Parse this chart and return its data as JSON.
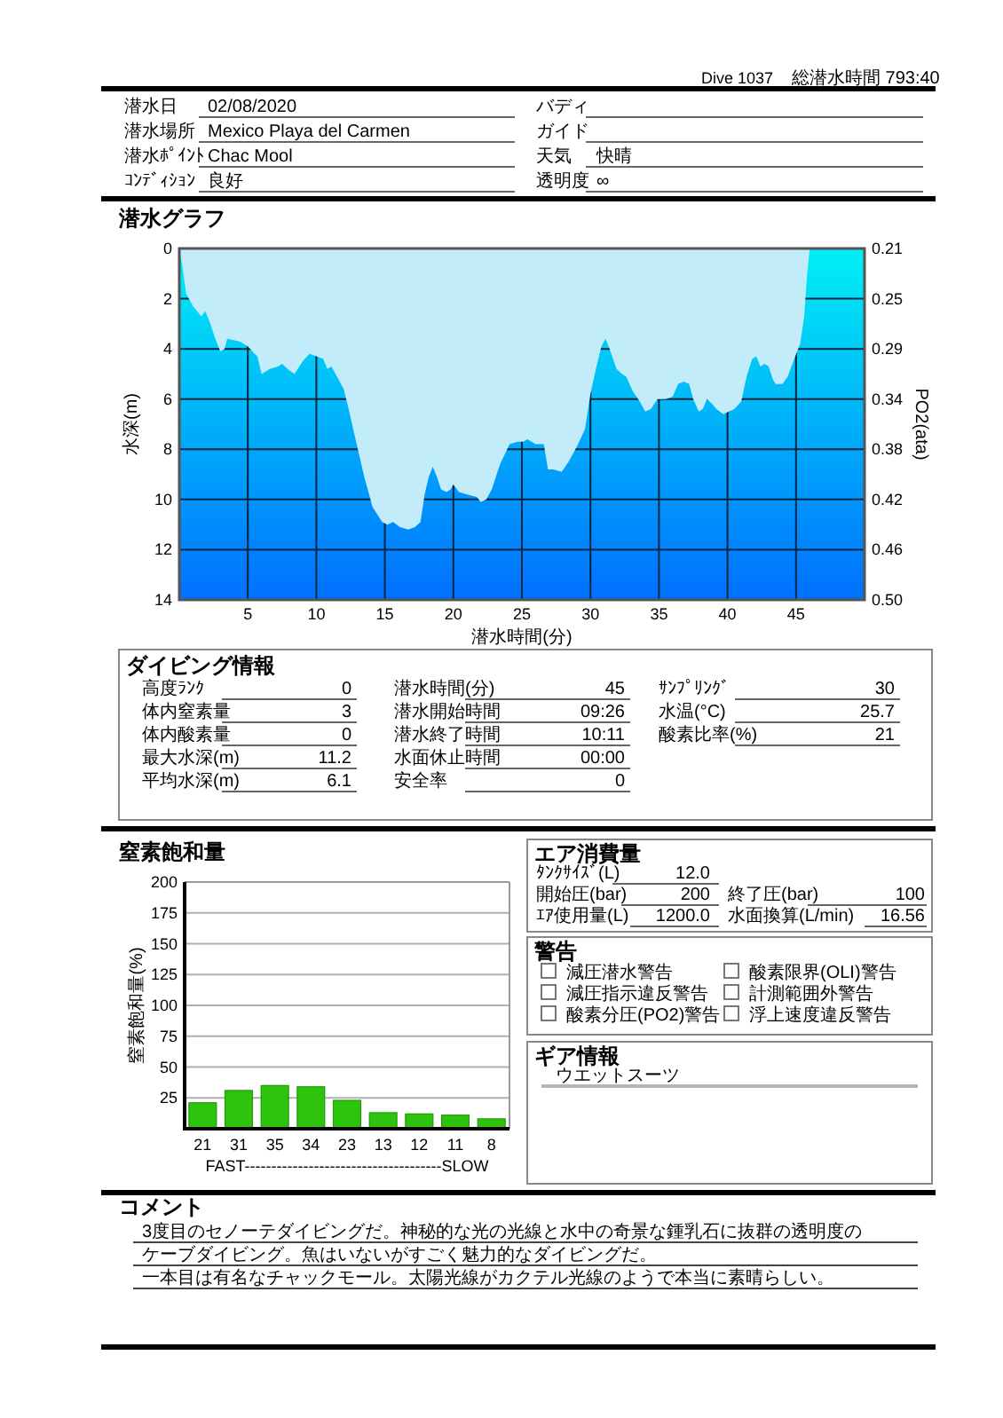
{
  "chart_data": [
    {
      "type": "other",
      "annotations": [
        "Dive 1037",
        "総潜水時間 793:40",
        "潜水日",
        "02/08/2020",
        "潜水場所",
        "Mexico Playa del Carmen",
        "潜水ﾎﾟｲﾝﾄ",
        "Chac Mool",
        "ｺﾝﾃﾞｨｼｮﾝ",
        "良好",
        "バディ",
        "ガイド",
        "天気",
        "快晴",
        "透明度",
        "∞"
      ]
    },
    {
      "type": "area",
      "title": "潜水グラフ",
      "xlabel": "潜水時間(分)",
      "ylabel": "水深(m)",
      "y2label": "PO2(ata)",
      "x": [
        0,
        0.2,
        0.5,
        1.0,
        1.6,
        1.9,
        2.2,
        2.7,
        3.0,
        3.3,
        3.5,
        4.4,
        5.0,
        5.5,
        5.7,
        6.0,
        6.6,
        7.2,
        7.5,
        7.9,
        8.4,
        9.0,
        9.5,
        10.0,
        10.5,
        10.8,
        11.1,
        11.5,
        12.0,
        12.4,
        12.9,
        13.5,
        14.1,
        14.8,
        15.2,
        15.6,
        16.1,
        16.7,
        17.2,
        17.6,
        17.9,
        18.2,
        18.5,
        18.8,
        19.1,
        19.5,
        19.8,
        20.0,
        20.4,
        21.0,
        21.7,
        22.0,
        22.4,
        22.8,
        23.4,
        24.1,
        24.7,
        25.1,
        25.4,
        26.0,
        26.6,
        26.9,
        27.3,
        27.9,
        28.4,
        29.0,
        29.6,
        30.0,
        30.4,
        30.8,
        31.1,
        31.4,
        31.9,
        32.3,
        32.6,
        33.1,
        33.6,
        34.0,
        34.4,
        34.9,
        35.5,
        36.0,
        36.4,
        36.8,
        37.2,
        37.5,
        37.9,
        38.2,
        38.5,
        38.9,
        39.2,
        39.7,
        40.1,
        40.5,
        41.0,
        41.4,
        41.8,
        42.1,
        42.4,
        42.7,
        43.0,
        43.3,
        43.5,
        44.0,
        44.4,
        44.8,
        45.3,
        45.6,
        45.8,
        46.0
      ],
      "values": [
        0,
        0.6,
        1.8,
        2.3,
        2.7,
        2.5,
        2.9,
        3.7,
        4.1,
        4.0,
        3.6,
        3.7,
        3.9,
        4.2,
        4.3,
        5.0,
        4.8,
        4.7,
        4.6,
        4.8,
        5.0,
        4.5,
        4.2,
        4.3,
        4.4,
        4.8,
        4.7,
        5.1,
        5.6,
        6.5,
        7.7,
        9.1,
        10.3,
        10.9,
        11.0,
        10.9,
        11.1,
        11.2,
        11.1,
        10.9,
        9.8,
        9.1,
        8.7,
        9.1,
        9.6,
        9.7,
        9.6,
        9.4,
        9.7,
        9.8,
        9.9,
        10.1,
        10.0,
        9.6,
        8.6,
        7.8,
        7.7,
        7.7,
        7.6,
        7.8,
        7.8,
        8.8,
        8.8,
        8.9,
        8.5,
        7.9,
        7.2,
        5.8,
        4.8,
        3.9,
        3.6,
        4.0,
        4.8,
        5.0,
        5.1,
        5.7,
        6.1,
        6.5,
        6.4,
        6.0,
        6.0,
        5.9,
        5.4,
        5.3,
        5.4,
        6.0,
        6.5,
        6.4,
        6.0,
        6.2,
        6.4,
        6.6,
        6.5,
        6.4,
        6.1,
        5.1,
        4.4,
        4.3,
        4.7,
        4.6,
        4.7,
        5.2,
        5.4,
        5.4,
        5.1,
        4.5,
        3.8,
        2.7,
        1.1,
        0
      ],
      "color": "#c3ecfa",
      "xlim": [
        0,
        50
      ],
      "xticks": [
        5,
        10,
        15,
        20,
        25,
        30,
        35,
        40,
        45
      ],
      "ylim": [
        14,
        0
      ],
      "yticks": [
        0,
        2,
        4,
        6,
        8,
        10,
        12,
        14
      ],
      "y2lim": [
        0.504,
        0.21
      ],
      "y2ticks": [
        0.21,
        {
          "value": 0.252,
          "label": "0.25"
        },
        {
          "value": 0.294,
          "label": "0.29"
        },
        {
          "value": 0.336,
          "label": "0.34"
        },
        {
          "value": 0.378,
          "label": "0.38"
        },
        0.42,
        {
          "value": 0.462,
          "label": "0.46"
        },
        {
          "value": 0.504,
          "label": "0.50"
        }
      ],
      "grid": true
    },
    {
      "type": "other",
      "title": "ダイビング情報",
      "annotations": [
        "高度ﾗﾝｸ",
        "0",
        "体内窒素量",
        "3",
        "体内酸素量",
        "0",
        "最大水深(m)",
        "11.2",
        "平均水深(m)",
        "6.1",
        "潜水時間(分)",
        "45",
        "潜水開始時間",
        "09:26",
        "潜水終了時間",
        "10:11",
        "水面休止時間",
        "00:00",
        "安全率",
        "0",
        "ｻﾝﾌﾟﾘﾝｸﾞ",
        "30",
        "水温(°C)",
        "25.7",
        "酸素比率(%)",
        "21"
      ]
    },
    {
      "type": "bar",
      "title": "窒素飽和量",
      "ylabel": "窒素飽和量(%)",
      "categories": [
        null,
        null,
        null,
        null,
        null,
        null,
        null,
        null,
        null
      ],
      "values": [
        21,
        31,
        35,
        34,
        23,
        13,
        12,
        11,
        8
      ],
      "color": "#2ec40e",
      "ylim": [
        0,
        200
      ],
      "yticks": [
        25,
        50,
        75,
        100,
        125,
        150,
        175,
        200
      ],
      "grid": "y",
      "data_labels": true,
      "annotations": [
        "FAST-------------------------------------SLOW"
      ]
    },
    {
      "type": "other",
      "title": "エア消費量",
      "annotations": [
        "ﾀﾝｸｻｲｽﾞ(L)",
        "12.0",
        "開始圧(bar)",
        "200",
        "終了圧(bar)",
        "100",
        "ｴｱ使用量(L)",
        "1200.0",
        "水面換算(L/min)",
        "16.56"
      ]
    },
    {
      "type": "other",
      "title": "警告",
      "annotations": [
        "減圧潜水警告",
        "減圧指示違反警告",
        "酸素分圧(PO2)警告",
        "酸素限界(OLI)警告",
        "計測範囲外警告",
        "浮上速度違反警告"
      ]
    },
    {
      "type": "other",
      "title": "ギア情報",
      "annotations": [
        "ウエットスーツ"
      ]
    },
    {
      "type": "other",
      "title": "コメント",
      "annotations": [
        "3度目のセノーテダイビングだ。神秘的な光の光線と水中の奇景な鍾乳石に抜群の透明度の",
        "ケーブダイビング。魚はいないがすごく魅力的なダイビングだ。",
        "一本目は有名なチャックモール。太陽光線がカクテル光線のようで本当に素晴らしい。"
      ]
    }
  ]
}
